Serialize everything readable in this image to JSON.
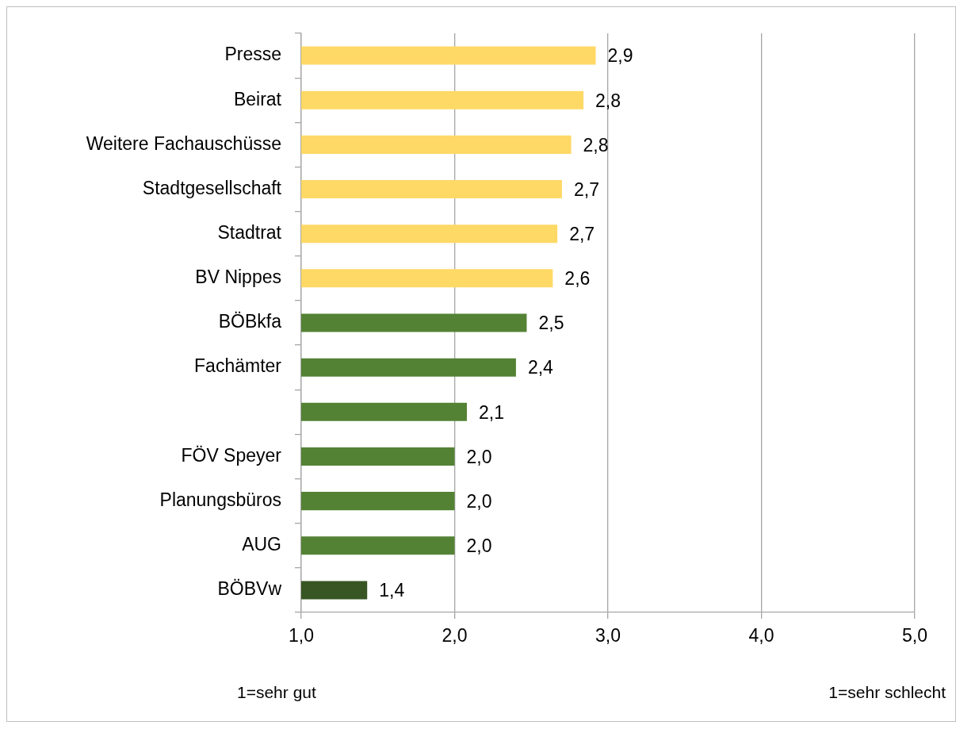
{
  "chart_data": {
    "type": "bar",
    "orientation": "horizontal",
    "categories": [
      "Presse",
      "Beirat",
      "Weitere Fachauschüsse",
      "Stadtgesellschaft",
      "Stadtrat",
      "BV Nippes",
      "BÖBkfa",
      "Fachämter",
      null,
      "FÖV Speyer",
      "Planungsbüros",
      "AUG",
      "BÖBVw"
    ],
    "values": [
      2.92,
      2.84,
      2.76,
      2.7,
      2.67,
      2.64,
      2.47,
      2.4,
      2.08,
      2.0,
      2.0,
      2.0,
      1.43
    ],
    "colors": [
      "#ffd966",
      "#ffd966",
      "#ffd966",
      "#ffd966",
      "#ffd966",
      "#ffd966",
      "#548235",
      "#548235",
      "#548235",
      "#548235",
      "#548235",
      "#548235",
      "#375623"
    ],
    "value_labels": [
      "2,9",
      "2,8",
      "2,8",
      "2,7",
      "2,7",
      "2,6",
      "2,5",
      "2,4",
      "2,1",
      "2,0",
      "2,0",
      "2,0",
      "1,4"
    ],
    "xlim": [
      1,
      5
    ],
    "xticks": [
      {
        "value": 1,
        "label": "1,0"
      },
      {
        "value": 2,
        "label": "2,0"
      },
      {
        "value": 3,
        "label": "3,0"
      },
      {
        "value": 4,
        "label": "4,0"
      },
      {
        "value": 5,
        "label": "5,0"
      }
    ],
    "grid": "x",
    "annotations": [
      "1=sehr gut",
      "1=sehr schlecht"
    ]
  }
}
